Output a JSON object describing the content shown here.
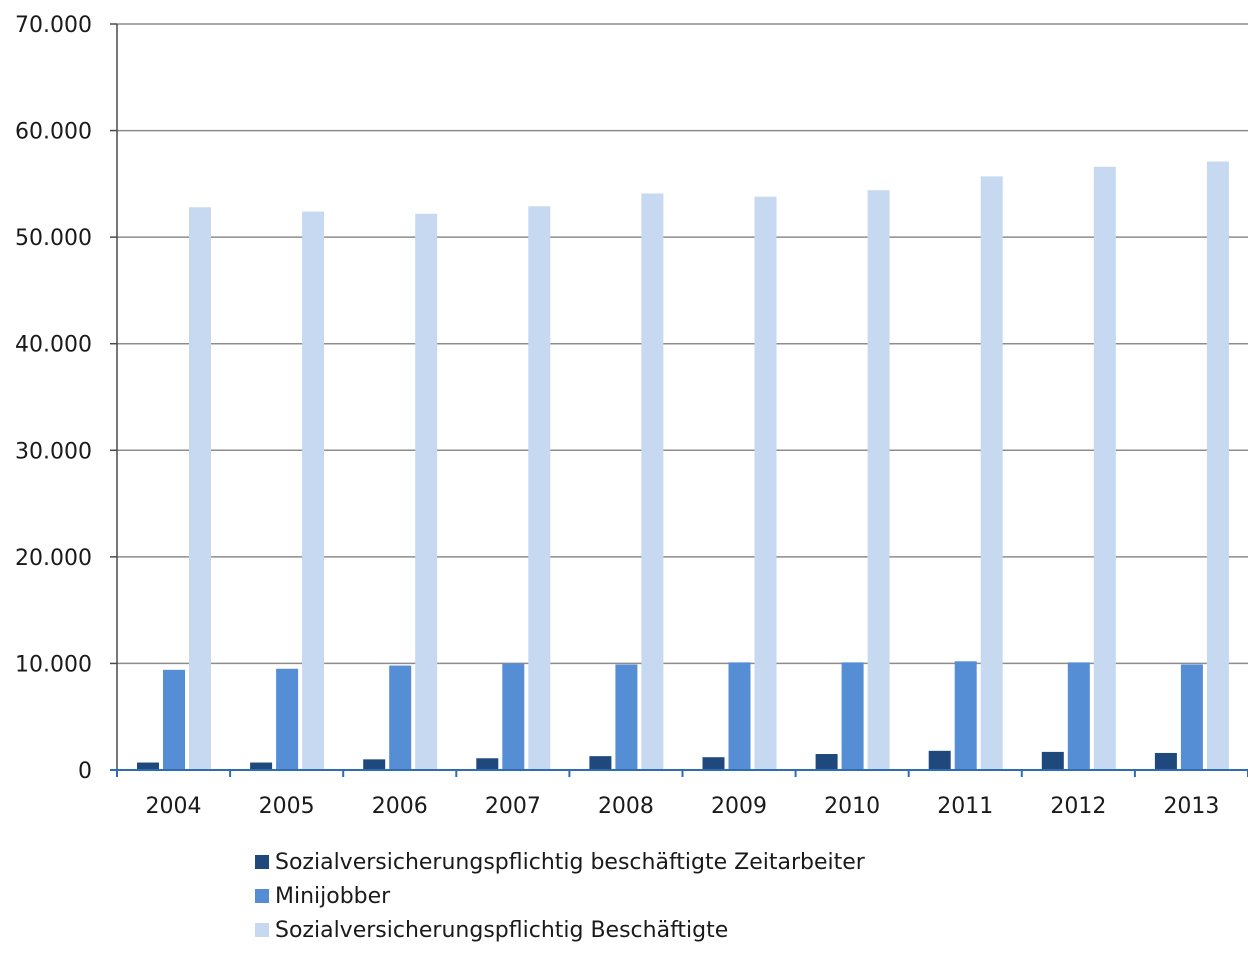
{
  "chart_data": {
    "type": "bar",
    "title": "",
    "xlabel": "",
    "ylabel": "",
    "categories": [
      "2004",
      "2005",
      "2006",
      "2007",
      "2008",
      "2009",
      "2010",
      "2011",
      "2012",
      "2013"
    ],
    "series": [
      {
        "name": "Sozialversicherungspflichtig beschäftigte Zeitarbeiter",
        "color": "#1f497d",
        "values": [
          700,
          700,
          1000,
          1100,
          1300,
          1200,
          1500,
          1800,
          1700,
          1600
        ]
      },
      {
        "name": "Minijobber",
        "color": "#558ed5",
        "values": [
          9400,
          9500,
          9800,
          10000,
          9900,
          10100,
          10100,
          10200,
          10100,
          9900
        ]
      },
      {
        "name": "Sozialversicherungspflichtig Beschäftigte",
        "color": "#c6d9f1",
        "values": [
          52800,
          52400,
          52200,
          52900,
          54100,
          53800,
          54400,
          55700,
          56600,
          57100
        ]
      }
    ],
    "ylim": [
      0,
      70000
    ],
    "y_ticks": [
      0,
      10000,
      20000,
      30000,
      40000,
      50000,
      60000,
      70000
    ],
    "y_tick_labels": [
      "0",
      "10.000",
      "20.000",
      "30.000",
      "40.000",
      "50.000",
      "60.000",
      "70.000"
    ],
    "grid": true,
    "legend_position": "bottom"
  }
}
